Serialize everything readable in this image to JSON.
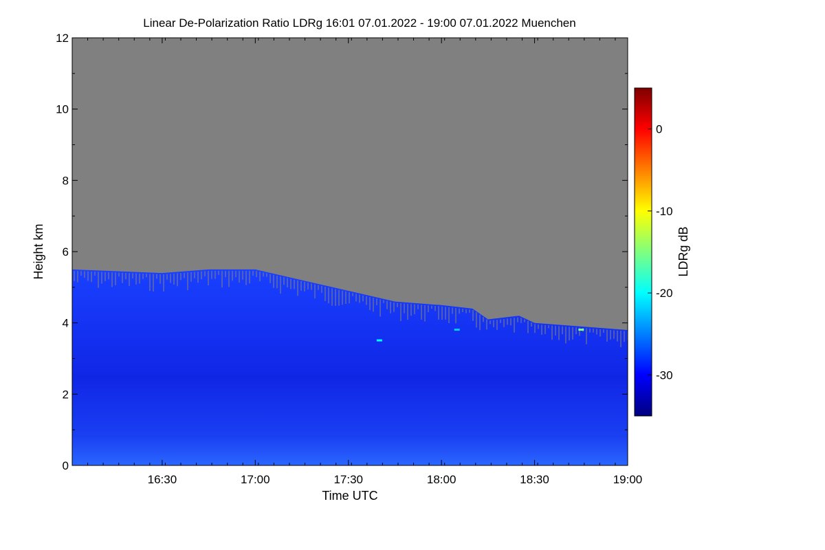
{
  "chart_data": {
    "type": "heatmap",
    "title": "Linear De-Polarization Ratio LDRg   16:01 07.01.2022 - 19:00 07.01.2022 Muenchen",
    "xlabel": "Time UTC",
    "ylabel": "Height km",
    "xlim": [
      "16:01",
      "19:00"
    ],
    "ylim": [
      0,
      12
    ],
    "x_ticks": [
      "16:30",
      "17:00",
      "17:30",
      "18:00",
      "18:30",
      "19:00"
    ],
    "y_ticks": [
      0,
      2,
      4,
      6,
      8,
      10,
      12
    ],
    "colorbar": {
      "label": "LDRg dB",
      "range": [
        -35,
        5
      ],
      "ticks": [
        0,
        -10,
        -20,
        -30
      ],
      "colormap": "jet"
    },
    "no_signal_color": "#808080",
    "cloud_top_km": [
      {
        "time": "16:01",
        "value": 5.5
      },
      {
        "time": "16:30",
        "value": 5.4
      },
      {
        "time": "16:45",
        "value": 5.5
      },
      {
        "time": "17:00",
        "value": 5.5
      },
      {
        "time": "17:15",
        "value": 5.2
      },
      {
        "time": "17:30",
        "value": 4.9
      },
      {
        "time": "17:45",
        "value": 4.6
      },
      {
        "time": "18:00",
        "value": 4.5
      },
      {
        "time": "18:10",
        "value": 4.4
      },
      {
        "time": "18:15",
        "value": 4.1
      },
      {
        "time": "18:25",
        "value": 4.2
      },
      {
        "time": "18:30",
        "value": 4.0
      },
      {
        "time": "18:45",
        "value": 3.9
      },
      {
        "time": "19:00",
        "value": 3.8
      }
    ],
    "typical_ldr_db": -32,
    "features": [
      {
        "time": "17:40",
        "height_km": 3.5,
        "value": -20
      },
      {
        "time": "18:05",
        "height_km": 3.8,
        "value": -22
      },
      {
        "time": "18:45",
        "height_km": 3.8,
        "value": -15
      }
    ]
  }
}
